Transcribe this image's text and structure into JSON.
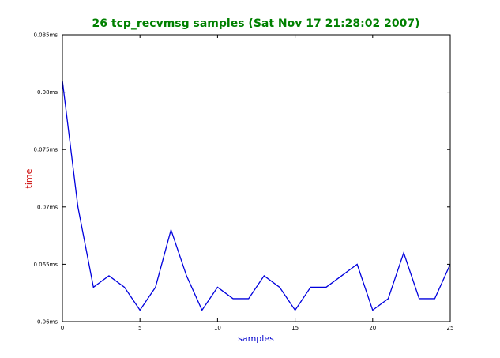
{
  "colors": {
    "title": "#008000",
    "xlabel": "#0000cc",
    "ylabel": "#cc0000",
    "line": "#0000dd",
    "frame": "#000000",
    "background": "#ffffff"
  },
  "chart_data": {
    "type": "line",
    "title": "26 tcp_recvmsg samples (Sat Nov 17 21:28:02 2007)",
    "xlabel": "samples",
    "ylabel": "time",
    "xlim": [
      0,
      25
    ],
    "ylim": [
      0.06,
      0.085
    ],
    "grid": false,
    "x_ticks": [
      0,
      5,
      10,
      15,
      20,
      25
    ],
    "x_tick_labels": [
      "0",
      "5",
      "10",
      "15",
      "20",
      "25"
    ],
    "y_ticks": [
      0.06,
      0.065,
      0.07,
      0.075,
      0.08,
      0.085
    ],
    "y_tick_labels": [
      "0.06ms",
      "0.065ms",
      "0.07ms",
      "0.075ms",
      "0.08ms",
      "0.085ms"
    ],
    "series": [
      {
        "x": [
          0,
          1,
          2,
          3,
          4,
          5,
          6,
          7,
          8,
          9,
          10,
          11,
          12,
          13,
          14,
          15,
          16,
          17,
          18,
          19,
          20,
          21,
          22,
          23,
          24,
          25
        ],
        "values": [
          0.081,
          0.07,
          0.063,
          0.064,
          0.063,
          0.061,
          0.063,
          0.068,
          0.064,
          0.061,
          0.063,
          0.062,
          0.062,
          0.064,
          0.063,
          0.061,
          0.063,
          0.063,
          0.064,
          0.065,
          0.061,
          0.062,
          0.066,
          0.062,
          0.062,
          0.065
        ]
      }
    ]
  }
}
